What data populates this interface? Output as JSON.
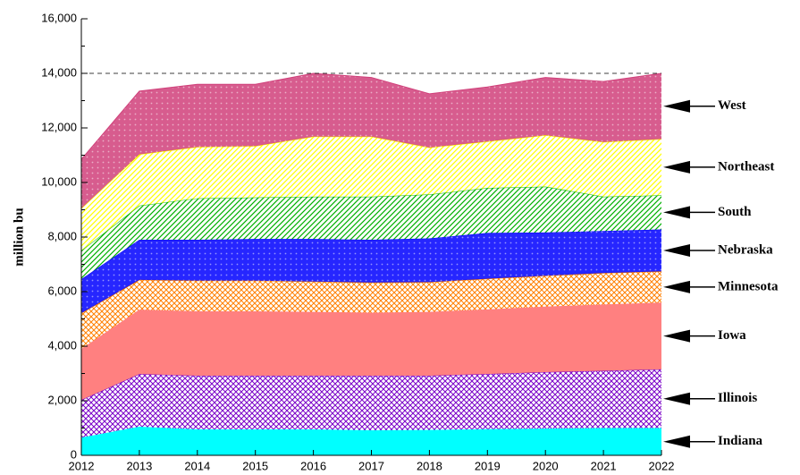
{
  "chart_data": {
    "type": "stacked_area",
    "ylabel": "million bu",
    "x": [
      2012,
      2013,
      2014,
      2015,
      2016,
      2017,
      2018,
      2019,
      2020,
      2021,
      2022
    ],
    "xlim": [
      2012,
      2022
    ],
    "xticks": [
      2012,
      2013,
      2014,
      2015,
      2016,
      2017,
      2018,
      2019,
      2020,
      2021,
      2022
    ],
    "ylim": [
      0,
      16000
    ],
    "yticks": [
      0,
      {
        "value": 2000,
        "label": "2,000"
      },
      {
        "value": 4000,
        "label": "4,000"
      },
      {
        "value": 6000,
        "label": "6,000"
      },
      {
        "value": 8000,
        "label": "8,000"
      },
      {
        "value": 10000,
        "label": "10,000"
      },
      {
        "value": 12000,
        "label": "12,000"
      },
      {
        "value": 14000,
        "label": "14,000"
      },
      {
        "value": 16000,
        "label": "16,000"
      }
    ],
    "reference_line": 14000,
    "series": [
      {
        "name": "Indiana",
        "color": "#00ffff",
        "values": [
          650,
          1050,
          950,
          950,
          950,
          920,
          930,
          960,
          980,
          1000,
          1000
        ]
      },
      {
        "name": "Illinois",
        "color": "#7a00c8",
        "values": [
          1380,
          1930,
          1970,
          1970,
          1970,
          2000,
          1990,
          2020,
          2070,
          2100,
          2150
        ]
      },
      {
        "name": "Iowa",
        "color": "#ff8080",
        "values": [
          1870,
          2360,
          2360,
          2360,
          2340,
          2310,
          2340,
          2370,
          2400,
          2430,
          2450
        ]
      },
      {
        "name": "Minnesota",
        "color": "#ff8000",
        "values": [
          1310,
          1090,
          1120,
          1120,
          1110,
          1100,
          1090,
          1120,
          1130,
          1150,
          1140
        ]
      },
      {
        "name": "Nebraska",
        "color": "#0000ff",
        "values": [
          1250,
          1470,
          1500,
          1530,
          1560,
          1570,
          1600,
          1680,
          1590,
          1540,
          1540
        ]
      },
      {
        "name": "South",
        "color": "#00b000",
        "values": [
          1040,
          1250,
          1520,
          1520,
          1550,
          1580,
          1610,
          1650,
          1680,
          1260,
          1250
        ]
      },
      {
        "name": "Northeast",
        "color": "#ffff00",
        "values": [
          1550,
          1880,
          1880,
          1880,
          2200,
          2200,
          1720,
          1700,
          1880,
          2000,
          2060
        ]
      },
      {
        "name": "West",
        "color": "#d0407a",
        "values": [
          1800,
          2320,
          2300,
          2270,
          2320,
          2170,
          1970,
          2000,
          2120,
          2220,
          2410
        ]
      }
    ]
  }
}
